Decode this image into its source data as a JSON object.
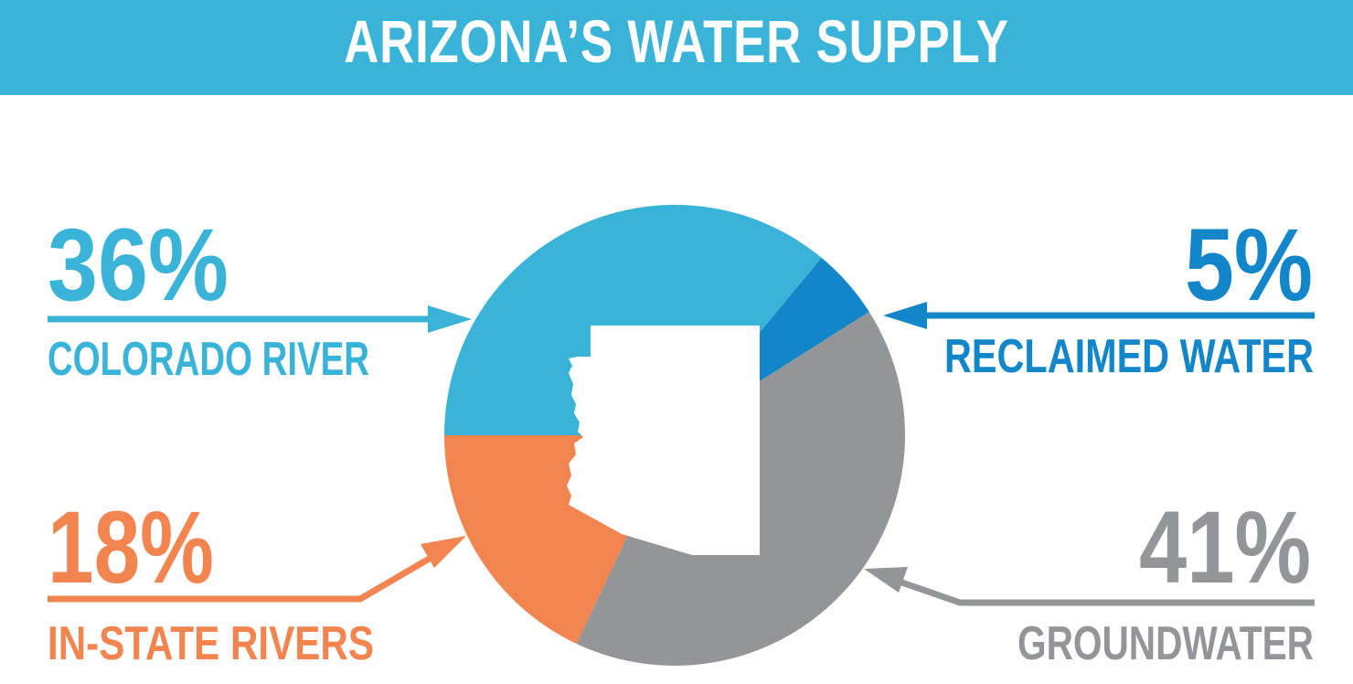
{
  "title": "ARIZONA’S WATER SUPPLY",
  "colors": {
    "title_bar": "#3ab3d9",
    "background": "#ffffff",
    "state_silhouette": "#ffffff"
  },
  "chart_data": {
    "type": "pie",
    "title": "ARIZONA’S WATER SUPPLY",
    "slices": [
      {
        "label": "COLORADO RIVER",
        "value": 36,
        "display": "36%",
        "color": "#3ab3d9"
      },
      {
        "label": "RECLAIMED WATER",
        "value": 5,
        "display": "5%",
        "color": "#1386c9"
      },
      {
        "label": "GROUNDWATER",
        "value": 41,
        "display": "41%",
        "color": "#939598"
      },
      {
        "label": "IN-STATE RIVERS",
        "value": 18,
        "display": "18%",
        "color": "#f2844f"
      }
    ],
    "legend": "callouts with arrows around the pie",
    "center_icon": "arizona-state-outline"
  }
}
